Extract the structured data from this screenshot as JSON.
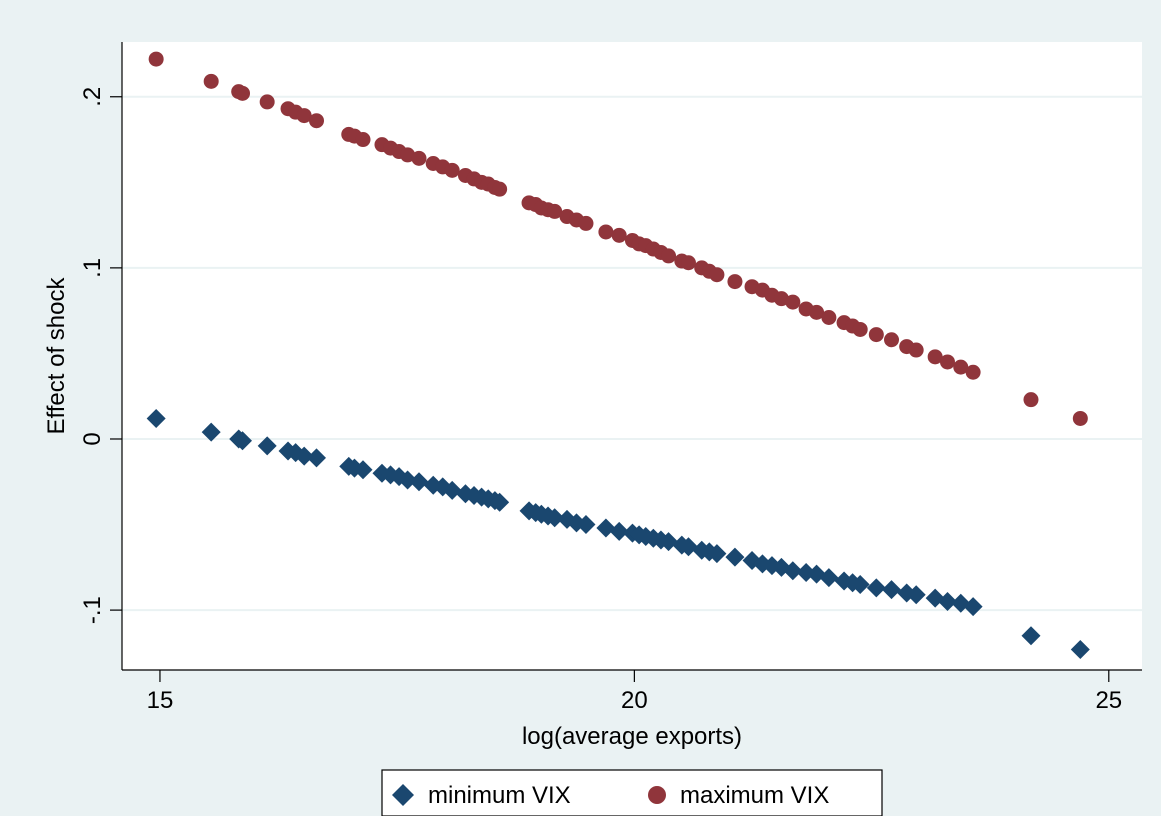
{
  "chart_data": {
    "type": "scatter",
    "xlabel": "log(average exports)",
    "ylabel": "Effect of shock",
    "xlim": [
      14.6,
      25.35
    ],
    "ylim": [
      -0.135,
      0.232
    ],
    "x_ticks": [
      {
        "value": 15,
        "label": "15"
      },
      {
        "value": 20,
        "label": "20"
      },
      {
        "value": 25,
        "label": "25"
      }
    ],
    "y_ticks": [
      {
        "value": -0.1,
        "label": "-.1"
      },
      {
        "value": 0,
        "label": "0"
      },
      {
        "value": 0.1,
        "label": ".1"
      },
      {
        "value": 0.2,
        "label": ".2"
      }
    ],
    "grid": "horizontal",
    "legend_position": "bottom",
    "colors": {
      "plot_background": "#ffffff",
      "outer_background": "#eaf2f3",
      "grid": "#eaf2f3"
    },
    "x": [
      14.96,
      15.54,
      15.83,
      15.87,
      16.13,
      16.35,
      16.43,
      16.52,
      16.65,
      16.99,
      17.05,
      17.14,
      17.34,
      17.43,
      17.52,
      17.61,
      17.73,
      17.88,
      17.98,
      18.08,
      18.22,
      18.31,
      18.39,
      18.46,
      18.53,
      18.58,
      18.89,
      18.96,
      19.02,
      19.09,
      19.16,
      19.29,
      19.39,
      19.49,
      19.7,
      19.84,
      19.98,
      20.05,
      20.12,
      20.2,
      20.28,
      20.36,
      20.5,
      20.57,
      20.71,
      20.79,
      20.87,
      21.06,
      21.24,
      21.35,
      21.45,
      21.55,
      21.67,
      21.81,
      21.92,
      22.05,
      22.21,
      22.3,
      22.38,
      22.55,
      22.71,
      22.87,
      22.97,
      23.17,
      23.3,
      23.44,
      23.57,
      24.18,
      24.7
    ],
    "series": [
      {
        "name": "minimum VIX",
        "marker": "diamond",
        "color": "#1a476f",
        "values": [
          0.012,
          0.004,
          0.0,
          -0.001,
          -0.004,
          -0.007,
          -0.008,
          -0.01,
          -0.011,
          -0.016,
          -0.017,
          -0.018,
          -0.02,
          -0.021,
          -0.022,
          -0.024,
          -0.025,
          -0.027,
          -0.028,
          -0.03,
          -0.032,
          -0.033,
          -0.034,
          -0.035,
          -0.036,
          -0.037,
          -0.042,
          -0.043,
          -0.044,
          -0.045,
          -0.046,
          -0.047,
          -0.049,
          -0.05,
          -0.052,
          -0.054,
          -0.055,
          -0.056,
          -0.057,
          -0.058,
          -0.059,
          -0.06,
          -0.062,
          -0.063,
          -0.065,
          -0.066,
          -0.067,
          -0.069,
          -0.071,
          -0.073,
          -0.074,
          -0.075,
          -0.077,
          -0.078,
          -0.079,
          -0.081,
          -0.083,
          -0.084,
          -0.085,
          -0.087,
          -0.088,
          -0.09,
          -0.091,
          -0.093,
          -0.095,
          -0.096,
          -0.098,
          -0.115,
          -0.123
        ]
      },
      {
        "name": "maximum VIX",
        "marker": "circle",
        "color": "#90353b",
        "values": [
          0.222,
          0.209,
          0.203,
          0.202,
          0.197,
          0.193,
          0.191,
          0.189,
          0.186,
          0.178,
          0.177,
          0.175,
          0.172,
          0.17,
          0.168,
          0.166,
          0.164,
          0.161,
          0.159,
          0.157,
          0.154,
          0.152,
          0.15,
          0.149,
          0.147,
          0.146,
          0.138,
          0.137,
          0.135,
          0.134,
          0.133,
          0.13,
          0.128,
          0.126,
          0.121,
          0.119,
          0.116,
          0.114,
          0.113,
          0.111,
          0.109,
          0.107,
          0.104,
          0.103,
          0.1,
          0.098,
          0.096,
          0.092,
          0.089,
          0.087,
          0.084,
          0.082,
          0.08,
          0.076,
          0.074,
          0.071,
          0.068,
          0.066,
          0.064,
          0.061,
          0.058,
          0.054,
          0.052,
          0.048,
          0.045,
          0.042,
          0.039,
          0.023,
          0.012
        ]
      }
    ]
  }
}
